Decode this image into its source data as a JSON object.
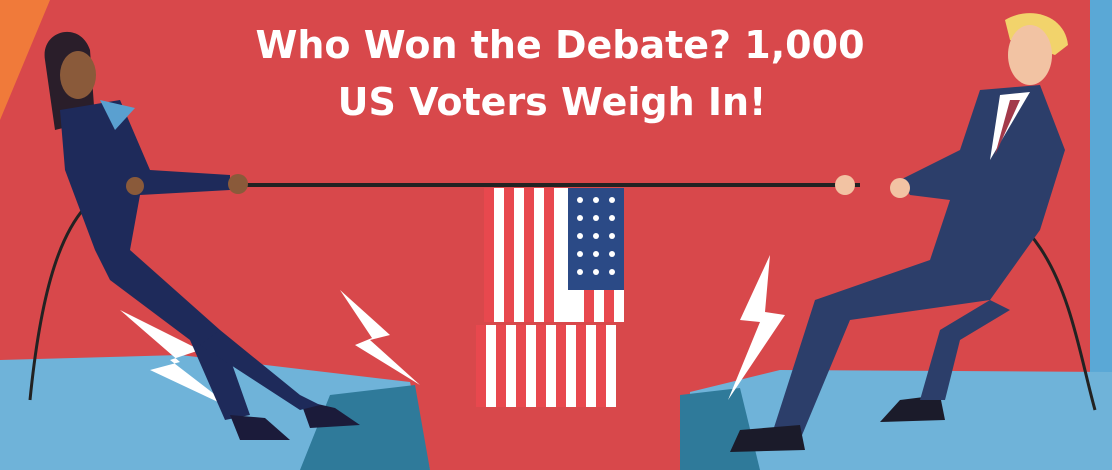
{
  "header": {
    "title_lines": [
      "Who Won the Debate? 1,000",
      "US Voters Weigh In!"
    ]
  }
}
